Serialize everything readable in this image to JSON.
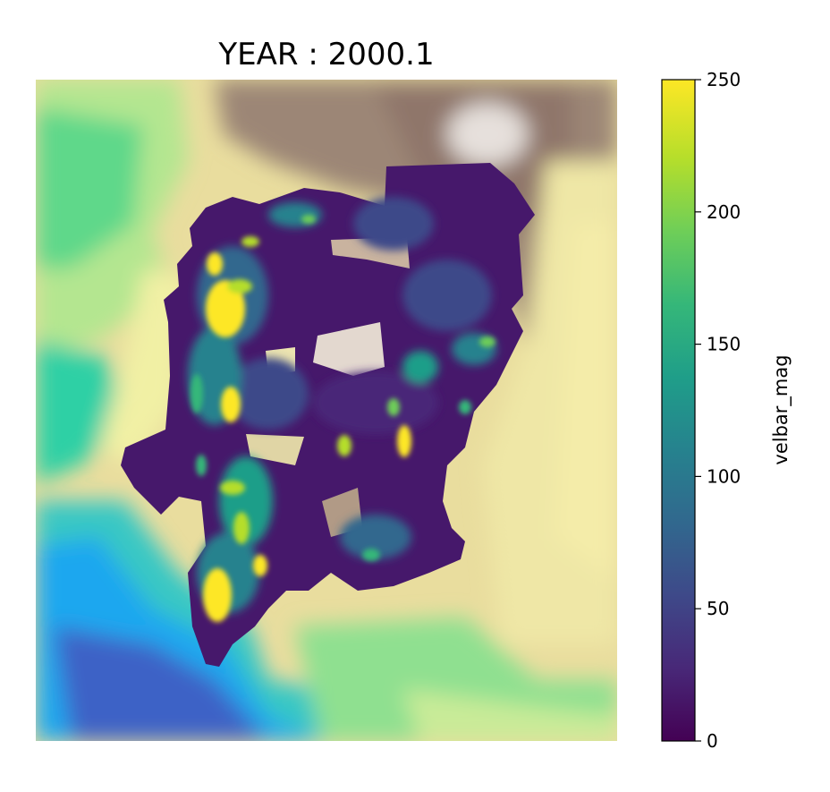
{
  "chart_data": {
    "type": "heatmap",
    "title": "YEAR : 2000.1",
    "background": "terrain elevation shaded (terrain colormap), no axes",
    "colorbar": {
      "label": "velbar_mag",
      "colormap": "viridis",
      "range": [
        0,
        250
      ],
      "ticks": [
        "0",
        "50",
        "100",
        "150",
        "200",
        "250"
      ],
      "tick_values": [
        0,
        50,
        100,
        150,
        200,
        250
      ]
    },
    "axes_visible": false,
    "colors": {
      "viridis": [
        "#440154",
        "#482878",
        "#3e4989",
        "#31688e",
        "#26828e",
        "#1f9e89",
        "#35b779",
        "#6ece58",
        "#b5de2b",
        "#fde725"
      ],
      "terrain": [
        "#3b5bb8",
        "#1fa7f0",
        "#2fd6a0",
        "#9be88a",
        "#f2f0a0",
        "#d6c38a",
        "#a58c73",
        "#8a7266",
        "#d9d2cf",
        "#ffffff"
      ]
    }
  }
}
